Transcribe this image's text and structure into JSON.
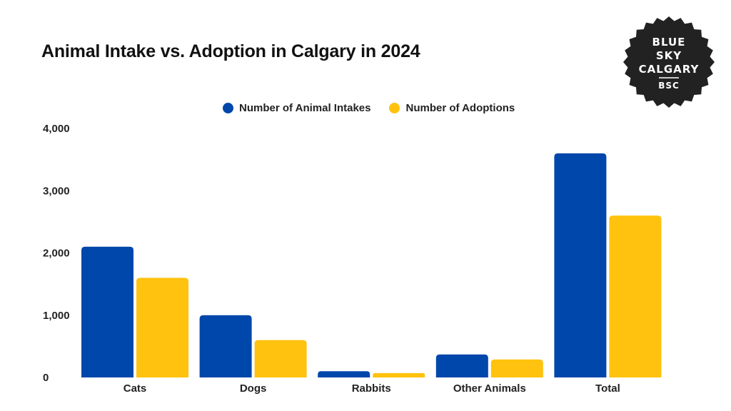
{
  "chart_data": {
    "type": "bar",
    "title": "Animal Intake vs. Adoption in Calgary in 2024",
    "categories": [
      "Cats",
      "Dogs",
      "Rabbits",
      "Other Animals",
      "Total"
    ],
    "series": [
      {
        "name": "Number of Animal Intakes",
        "color": "#0047AB",
        "values": [
          2100,
          1000,
          100,
          370,
          3600
        ]
      },
      {
        "name": "Number of Adoptions",
        "color": "#FFC20E",
        "values": [
          1600,
          600,
          70,
          290,
          2600
        ]
      }
    ],
    "xlabel": "",
    "ylabel": "",
    "ylim": [
      0,
      4000
    ],
    "yticks": [
      0,
      1000,
      2000,
      3000,
      4000
    ],
    "ytick_labels": [
      "0",
      "1,000",
      "2,000",
      "3,000",
      "4,000"
    ],
    "grid": false,
    "legend_position": "top-center"
  },
  "badge": {
    "lines": [
      "BLUE",
      "SKY",
      "CALGARY"
    ],
    "abbr": "BSC",
    "color": "#222222"
  }
}
